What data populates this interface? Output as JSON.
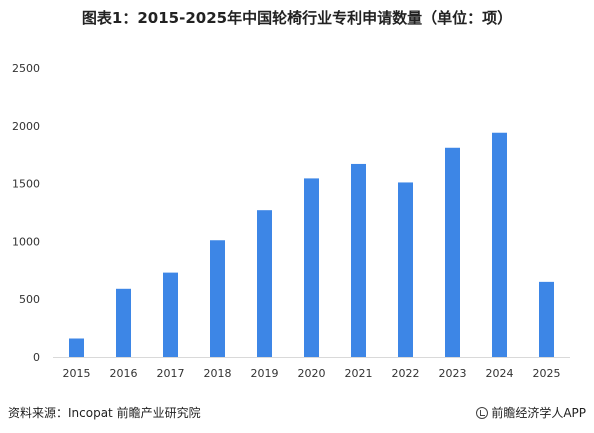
{
  "title": "图表1：2015-2025年中国轮椅行业专利申请数量（单位：项）",
  "footer": {
    "source": "资料来源：Incopat 前瞻产业研究院",
    "brand": "前瞻经济学人APP",
    "brand_icon": "qianzhan-logo-icon"
  },
  "colors": {
    "bar": "#3d86e6",
    "axis": "#d9d9d9"
  },
  "chart_data": {
    "type": "bar",
    "title": "图表1：2015-2025年中国轮椅行业专利申请数量（单位：项）",
    "categories": [
      "2015",
      "2016",
      "2017",
      "2018",
      "2019",
      "2020",
      "2021",
      "2022",
      "2023",
      "2024",
      "2025"
    ],
    "values": [
      160,
      590,
      730,
      1010,
      1270,
      1545,
      1670,
      1510,
      1810,
      1940,
      650
    ],
    "xlabel": "",
    "ylabel": "",
    "ylim": [
      0,
      2500
    ],
    "yticks": [
      0,
      500,
      1000,
      1500,
      2000,
      2500
    ],
    "grid": false,
    "legend": "none"
  }
}
